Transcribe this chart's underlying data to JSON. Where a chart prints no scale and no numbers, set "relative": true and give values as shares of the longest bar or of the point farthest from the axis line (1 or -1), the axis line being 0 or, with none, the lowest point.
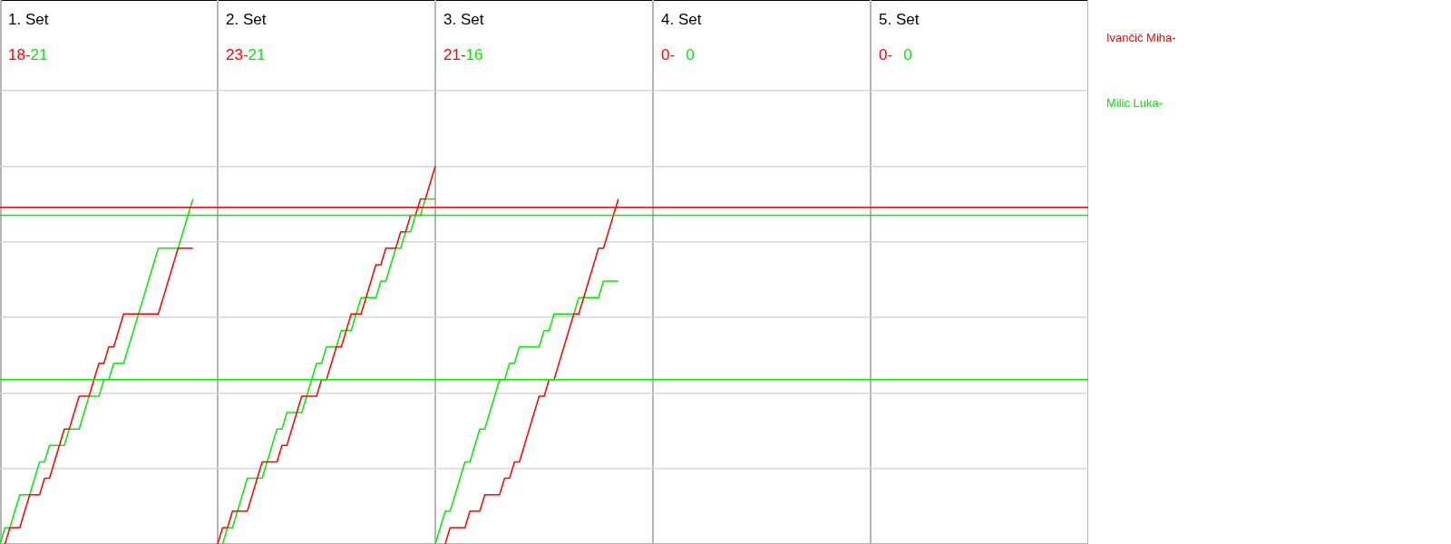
{
  "chart_data": {
    "type": "line",
    "relative": true,
    "tick_labels": false,
    "grid": "y",
    "categories": [
      null,
      null,
      null,
      null,
      null,
      null,
      null,
      null,
      null,
      null,
      null,
      null,
      null,
      null,
      null,
      null,
      null,
      null,
      null,
      null,
      null,
      null,
      null,
      null,
      null,
      null,
      null,
      null,
      null,
      null,
      null,
      null,
      null,
      null,
      null,
      null,
      null,
      null,
      null,
      null,
      null,
      null,
      null,
      null,
      null,
      null,
      null,
      null,
      null,
      null,
      null,
      null,
      null,
      null,
      null,
      null,
      null,
      null,
      null,
      null,
      null,
      null,
      null,
      null,
      null,
      null,
      null,
      null,
      null,
      null,
      null,
      null,
      null,
      null,
      null,
      null,
      null,
      null,
      null,
      null,
      null,
      null,
      null,
      null,
      null,
      null,
      null,
      null,
      null,
      null,
      null,
      null,
      null,
      null,
      null,
      null,
      null,
      null,
      null,
      null,
      null,
      null,
      null,
      null,
      null,
      null,
      null,
      null,
      null,
      null,
      null,
      null,
      null,
      null,
      null,
      null,
      null,
      null,
      null,
      null,
      null,
      null,
      null,
      null,
      null,
      null,
      null,
      null,
      null,
      null,
      null,
      null,
      null,
      null,
      null,
      null,
      null,
      null,
      null,
      null,
      null,
      null,
      null,
      null,
      null,
      null,
      null,
      null,
      null,
      null,
      null,
      null,
      null,
      null,
      null,
      null,
      null,
      null,
      null,
      null,
      null,
      null,
      null,
      null,
      null,
      null,
      null,
      null,
      null,
      null,
      null,
      null,
      null,
      null,
      null,
      null,
      null,
      null,
      null,
      null,
      null,
      null,
      null,
      null,
      null,
      null,
      null,
      null,
      null,
      null,
      null,
      null,
      null,
      null,
      null,
      null,
      null,
      null,
      null,
      null,
      null,
      null,
      null,
      null,
      null,
      null,
      null,
      null,
      null,
      null,
      null,
      null,
      null,
      null,
      null,
      null,
      null,
      null,
      null,
      null,
      null
    ],
    "annotations": [
      "1. Set",
      "18-",
      "21",
      "2. Set",
      "23-",
      "21",
      "3. Set",
      "21-",
      "16",
      "4. Set",
      "0-",
      "0",
      "5. Set",
      "0-",
      "0"
    ],
    "ref_lines": [
      {
        "axis": "y",
        "value": 0.891,
        "color": "#ff0000"
      },
      {
        "axis": "y",
        "value": 0.87,
        "color": "#00ee00"
      },
      {
        "axis": "y",
        "value": 0.435,
        "color": "#00ee00"
      }
    ],
    "series": [
      {
        "name": "Ivančič Miha-",
        "color": "#ff0000",
        "values": [
          null,
          0,
          0.043,
          0.043,
          0.043,
          0.087,
          0.13,
          0.13,
          0.13,
          0.174,
          0.174,
          0.217,
          0.261,
          0.304,
          0.304,
          0.348,
          0.391,
          0.391,
          0.391,
          0.435,
          0.478,
          0.478,
          0.522,
          0.522,
          0.565,
          0.609,
          0.609,
          0.609,
          0.609,
          0.609,
          0.609,
          0.609,
          0.609,
          0.652,
          0.696,
          0.739,
          0.783,
          0.783,
          0.783,
          0.783,
          null,
          null,
          null,
          null,
          null,
          null,
          null,
          null,
          null,
          null,
          null,
          null,
          null,
          null,
          null,
          null,
          null,
          null,
          null,
          null,
          null,
          null,
          null,
          null,
          null,
          null,
          null,
          null,
          null,
          null,
          null,
          null,
          null,
          null,
          null,
          null,
          null,
          null,
          null,
          null,
          null,
          null,
          null,
          null,
          null,
          null,
          null,
          null,
          null,
          null,
          null,
          null,
          null,
          null,
          null,
          null,
          null,
          null,
          null,
          null,
          null,
          null,
          null,
          null,
          null,
          null,
          null,
          null,
          null,
          null,
          null,
          null,
          null,
          null,
          null,
          null,
          null,
          null,
          null,
          null,
          null,
          null,
          null,
          null,
          null,
          null,
          null,
          null,
          null,
          null,
          null,
          null,
          null,
          null,
          null,
          null,
          null,
          null,
          null,
          null,
          null,
          null,
          null,
          null,
          null,
          null,
          null,
          null,
          null,
          null,
          null,
          null,
          null,
          null,
          null,
          null,
          null,
          null,
          null,
          null,
          null,
          null,
          null,
          null,
          null,
          null,
          null,
          null,
          null,
          null,
          null,
          null,
          null,
          null,
          null,
          null,
          null,
          null,
          null,
          null,
          null,
          null,
          null,
          null,
          null,
          null,
          null,
          null,
          null,
          null,
          null,
          null,
          null,
          null,
          null,
          null,
          null,
          null,
          null,
          null,
          null,
          null,
          null,
          null,
          null,
          null,
          null,
          null,
          null,
          null,
          null,
          null,
          null,
          null,
          null,
          null,
          null,
          null,
          null,
          null,
          null
        ]
      },
      {
        "name": "Milic Luka-",
        "color": "#00ee00",
        "values": [
          0,
          0.043,
          0.043,
          0.087,
          0.13,
          0.13,
          0.13,
          0.174,
          0.217,
          0.217,
          0.261,
          0.261,
          0.261,
          0.261,
          0.304,
          0.304,
          0.304,
          0.348,
          0.391,
          0.391,
          0.391,
          0.435,
          0.435,
          0.478,
          0.478,
          0.478,
          0.522,
          0.565,
          0.609,
          0.652,
          0.696,
          0.739,
          0.783,
          0.783,
          0.783,
          0.783,
          0.783,
          0.826,
          0.87,
          0.913,
          null,
          null,
          null,
          null,
          null,
          null,
          null,
          null,
          null,
          null,
          null,
          null,
          null,
          null,
          null,
          null,
          null,
          null,
          null,
          null,
          null,
          null,
          null,
          null,
          null,
          null,
          null,
          null,
          null,
          null,
          null,
          null,
          null,
          null,
          null,
          null,
          null,
          null,
          null,
          null,
          null,
          null,
          null,
          null,
          null,
          null,
          null,
          null,
          null,
          null,
          null,
          null,
          null,
          null,
          null,
          null,
          null,
          null,
          null,
          null,
          null,
          null,
          null,
          null,
          null,
          null,
          null,
          null,
          null,
          null,
          null,
          null,
          null,
          null,
          null,
          null,
          null,
          null,
          null,
          null,
          null,
          null,
          null,
          null,
          null,
          null,
          null,
          null,
          null,
          null,
          null,
          null,
          null,
          null,
          null,
          null,
          null,
          null,
          null,
          null,
          null,
          null,
          null,
          null,
          null,
          null,
          null,
          null,
          null,
          null,
          null,
          null,
          null,
          null,
          null,
          null,
          null,
          null,
          null,
          null,
          null,
          null,
          null,
          null,
          null,
          null,
          null,
          null,
          null,
          null,
          null,
          null,
          null,
          null,
          null,
          null,
          null,
          null,
          null,
          null,
          null,
          null,
          null,
          null,
          null,
          null,
          null,
          null,
          null,
          null,
          null,
          null,
          null,
          null,
          null,
          null,
          null,
          null,
          null,
          null,
          null,
          null,
          null,
          null,
          null,
          null,
          null,
          null,
          null,
          null,
          null,
          null,
          null,
          null,
          null,
          null,
          null,
          null,
          null,
          null,
          null
        ]
      },
      {
        "color": "#ff0000",
        "values": [
          null,
          null,
          null,
          null,
          null,
          null,
          null,
          null,
          null,
          null,
          null,
          null,
          null,
          null,
          null,
          null,
          null,
          null,
          null,
          null,
          null,
          null,
          null,
          null,
          null,
          null,
          null,
          null,
          null,
          null,
          null,
          null,
          null,
          null,
          null,
          null,
          null,
          null,
          null,
          null,
          null,
          null,
          null,
          null,
          0,
          0.043,
          0.043,
          0.087,
          0.087,
          0.087,
          0.087,
          0.13,
          0.174,
          0.217,
          0.217,
          0.217,
          0.217,
          0.261,
          0.261,
          0.304,
          0.348,
          0.391,
          0.391,
          0.391,
          0.391,
          0.435,
          0.435,
          0.478,
          0.522,
          0.522,
          0.565,
          0.609,
          0.609,
          0.609,
          0.652,
          0.696,
          0.739,
          0.739,
          0.783,
          0.783,
          0.783,
          0.826,
          0.826,
          0.87,
          0.87,
          0.913,
          0.913,
          0.957,
          1,
          null,
          null,
          null,
          null,
          null,
          null,
          null,
          null,
          null,
          null,
          null,
          null,
          null,
          null,
          null,
          null,
          null,
          null,
          null,
          null,
          null,
          null,
          null,
          null,
          null,
          null,
          null,
          null,
          null,
          null,
          null,
          null,
          null,
          null,
          null,
          null,
          null,
          null,
          null,
          null,
          null,
          null,
          null,
          null,
          null,
          null,
          null,
          null,
          null,
          null,
          null,
          null,
          null,
          null,
          null,
          null,
          null,
          null,
          null,
          null,
          null,
          null,
          null,
          null,
          null,
          null,
          null,
          null,
          null,
          null,
          null,
          null,
          null,
          null,
          null,
          null,
          null,
          null,
          null,
          null,
          null,
          null,
          null,
          null,
          null,
          null,
          null,
          null,
          null,
          null,
          null,
          null,
          null,
          null,
          null,
          null,
          null,
          null,
          null,
          null,
          null,
          null,
          null,
          null,
          null,
          null,
          null,
          null,
          null,
          null,
          null,
          null,
          null,
          null,
          null,
          null,
          null,
          null,
          null,
          null,
          null,
          null,
          null,
          null,
          null,
          null,
          null,
          null,
          null,
          null,
          null,
          null
        ]
      },
      {
        "color": "#00ee00",
        "values": [
          null,
          null,
          null,
          null,
          null,
          null,
          null,
          null,
          null,
          null,
          null,
          null,
          null,
          null,
          null,
          null,
          null,
          null,
          null,
          null,
          null,
          null,
          null,
          null,
          null,
          null,
          null,
          null,
          null,
          null,
          null,
          null,
          null,
          null,
          null,
          null,
          null,
          null,
          null,
          null,
          null,
          null,
          null,
          null,
          null,
          0,
          0.043,
          0.043,
          0.087,
          0.13,
          0.174,
          0.174,
          0.174,
          0.174,
          0.217,
          0.261,
          0.304,
          0.304,
          0.348,
          0.348,
          0.348,
          0.348,
          0.391,
          0.435,
          0.478,
          0.478,
          0.522,
          0.522,
          0.522,
          0.565,
          0.565,
          0.565,
          0.609,
          0.652,
          0.652,
          0.652,
          0.652,
          0.696,
          0.696,
          0.739,
          0.783,
          0.783,
          0.826,
          0.826,
          0.87,
          0.87,
          0.913,
          0.913,
          0.913,
          null,
          null,
          null,
          null,
          null,
          null,
          null,
          null,
          null,
          null,
          null,
          null,
          null,
          null,
          null,
          null,
          null,
          null,
          null,
          null,
          null,
          null,
          null,
          null,
          null,
          null,
          null,
          null,
          null,
          null,
          null,
          null,
          null,
          null,
          null,
          null,
          null,
          null,
          null,
          null,
          null,
          null,
          null,
          null,
          null,
          null,
          null,
          null,
          null,
          null,
          null,
          null,
          null,
          null,
          null,
          null,
          null,
          null,
          null,
          null,
          null,
          null,
          null,
          null,
          null,
          null,
          null,
          null,
          null,
          null,
          null,
          null,
          null,
          null,
          null,
          null,
          null,
          null,
          null,
          null,
          null,
          null,
          null,
          null,
          null,
          null,
          null,
          null,
          null,
          null,
          null,
          null,
          null,
          null,
          null,
          null,
          null,
          null,
          null,
          null,
          null,
          null,
          null,
          null,
          null,
          null,
          null,
          null,
          null,
          null,
          null,
          null,
          null,
          null,
          null,
          null,
          null,
          null,
          null,
          null,
          null,
          null,
          null,
          null,
          null,
          null,
          null,
          null,
          null,
          null,
          null,
          null
        ]
      },
      {
        "color": "#ff0000",
        "values": [
          null,
          null,
          null,
          null,
          null,
          null,
          null,
          null,
          null,
          null,
          null,
          null,
          null,
          null,
          null,
          null,
          null,
          null,
          null,
          null,
          null,
          null,
          null,
          null,
          null,
          null,
          null,
          null,
          null,
          null,
          null,
          null,
          null,
          null,
          null,
          null,
          null,
          null,
          null,
          null,
          null,
          null,
          null,
          null,
          null,
          null,
          null,
          null,
          null,
          null,
          null,
          null,
          null,
          null,
          null,
          null,
          null,
          null,
          null,
          null,
          null,
          null,
          null,
          null,
          null,
          null,
          null,
          null,
          null,
          null,
          null,
          null,
          null,
          null,
          null,
          null,
          null,
          null,
          null,
          null,
          null,
          null,
          null,
          null,
          null,
          null,
          null,
          null,
          null,
          null,
          0,
          0.043,
          0.043,
          0.043,
          0.043,
          0.087,
          0.087,
          0.087,
          0.13,
          0.13,
          0.13,
          0.13,
          0.174,
          0.174,
          0.217,
          0.217,
          0.261,
          0.304,
          0.348,
          0.391,
          0.391,
          0.435,
          0.435,
          0.478,
          0.522,
          0.565,
          0.609,
          0.609,
          0.652,
          0.696,
          0.739,
          0.783,
          0.783,
          0.826,
          0.87,
          0.913,
          null,
          null,
          null,
          null,
          null,
          null,
          null,
          null,
          null,
          null,
          null,
          null,
          null,
          null,
          null,
          null,
          null,
          null,
          null,
          null,
          null,
          null,
          null,
          null,
          null,
          null,
          null,
          null,
          null,
          null,
          null,
          null,
          null,
          null,
          null,
          null,
          null,
          null,
          null,
          null,
          null,
          null,
          null,
          null,
          null,
          null,
          null,
          null,
          null,
          null,
          null,
          null,
          null,
          null,
          null,
          null,
          null,
          null,
          null,
          null,
          null,
          null,
          null,
          null,
          null,
          null,
          null,
          null,
          null,
          null,
          null,
          null,
          null,
          null,
          null,
          null,
          null,
          null,
          null,
          null,
          null,
          null,
          null,
          null,
          null,
          null,
          null,
          null,
          null,
          null,
          null,
          null,
          null,
          null,
          null
        ]
      },
      {
        "color": "#00ee00",
        "values": [
          null,
          null,
          null,
          null,
          null,
          null,
          null,
          null,
          null,
          null,
          null,
          null,
          null,
          null,
          null,
          null,
          null,
          null,
          null,
          null,
          null,
          null,
          null,
          null,
          null,
          null,
          null,
          null,
          null,
          null,
          null,
          null,
          null,
          null,
          null,
          null,
          null,
          null,
          null,
          null,
          null,
          null,
          null,
          null,
          null,
          null,
          null,
          null,
          null,
          null,
          null,
          null,
          null,
          null,
          null,
          null,
          null,
          null,
          null,
          null,
          null,
          null,
          null,
          null,
          null,
          null,
          null,
          null,
          null,
          null,
          null,
          null,
          null,
          null,
          null,
          null,
          null,
          null,
          null,
          null,
          null,
          null,
          null,
          null,
          null,
          null,
          null,
          null,
          0,
          0.043,
          0.087,
          0.087,
          0.13,
          0.174,
          0.217,
          0.217,
          0.261,
          0.304,
          0.304,
          0.348,
          0.391,
          0.435,
          0.435,
          0.478,
          0.478,
          0.522,
          0.522,
          0.522,
          0.522,
          0.522,
          0.565,
          0.565,
          0.609,
          0.609,
          0.609,
          0.609,
          0.609,
          0.652,
          0.652,
          0.652,
          0.652,
          0.652,
          0.696,
          0.696,
          0.696,
          0.696,
          null,
          null,
          null,
          null,
          null,
          null,
          null,
          null,
          null,
          null,
          null,
          null,
          null,
          null,
          null,
          null,
          null,
          null,
          null,
          null,
          null,
          null,
          null,
          null,
          null,
          null,
          null,
          null,
          null,
          null,
          null,
          null,
          null,
          null,
          null,
          null,
          null,
          null,
          null,
          null,
          null,
          null,
          null,
          null,
          null,
          null,
          null,
          null,
          null,
          null,
          null,
          null,
          null,
          null,
          null,
          null,
          null,
          null,
          null,
          null,
          null,
          null,
          null,
          null,
          null,
          null,
          null,
          null,
          null,
          null,
          null,
          null,
          null,
          null,
          null,
          null,
          null,
          null,
          null,
          null,
          null,
          null,
          null,
          null,
          null,
          null,
          null,
          null,
          null,
          null,
          null,
          null,
          null,
          null,
          null
        ]
      }
    ]
  }
}
